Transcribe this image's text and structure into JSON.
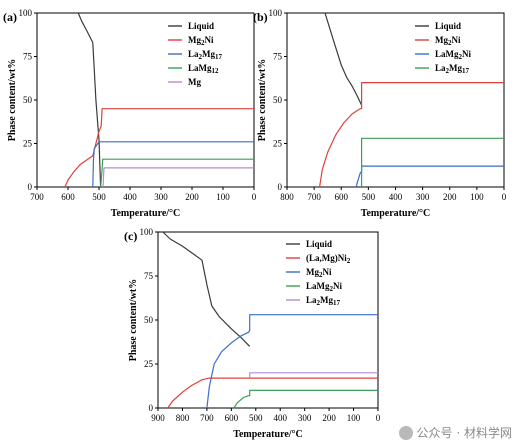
{
  "chart_data": [
    {
      "type": "line",
      "panel_label": "(a)",
      "xlabel": "Temperature/°C",
      "ylabel": "Phase content/wt%",
      "xlim": [
        700,
        0
      ],
      "ylim": [
        0,
        100
      ],
      "x_ticks": [
        700,
        600,
        500,
        400,
        300,
        200,
        100,
        0
      ],
      "y_ticks": [
        0,
        25,
        50,
        75,
        100
      ],
      "legend_position": "top-right",
      "series": [
        {
          "name": "Liquid",
          "sub": "",
          "color": "#3a3a3a",
          "points": [
            [
              567,
              100
            ],
            [
              555,
              95
            ],
            [
              540,
              90
            ],
            [
              520,
              83
            ],
            [
              510,
              50
            ],
            [
              500,
              27
            ],
            [
              495,
              0
            ]
          ]
        },
        {
          "name": "Mg",
          "sub": "2",
          "name_after": "Ni",
          "color": "#e0403a",
          "points": [
            [
              610,
              0
            ],
            [
              600,
              4
            ],
            [
              580,
              9
            ],
            [
              560,
              13
            ],
            [
              520,
              18
            ],
            [
              510,
              25
            ],
            [
              500,
              32
            ],
            [
              493,
              35
            ],
            [
              490,
              45
            ],
            [
              0,
              45
            ]
          ]
        },
        {
          "name": "La",
          "sub": "2",
          "name_after": "Mg",
          "sub2": "17",
          "color": "#3a6fc7",
          "points": [
            [
              520,
              0
            ],
            [
              518,
              15
            ],
            [
              515,
              22
            ],
            [
              500,
              26
            ],
            [
              0,
              26
            ]
          ]
        },
        {
          "name": "LaMg",
          "sub": "12",
          "color": "#3d9e57",
          "points": [
            [
              495,
              0
            ],
            [
              493,
              4
            ],
            [
              490,
              10
            ],
            [
              488,
              16
            ],
            [
              0,
              16
            ]
          ]
        },
        {
          "name": "Mg",
          "sub": "",
          "color": "#b58bd3",
          "points": [
            [
              487,
              0
            ],
            [
              485,
              8
            ],
            [
              484,
              11
            ],
            [
              0,
              11
            ]
          ]
        }
      ]
    },
    {
      "type": "line",
      "panel_label": "(b)",
      "xlabel": "Temperature/°C",
      "ylabel": "Phase content/wt%",
      "xlim": [
        800,
        0
      ],
      "ylim": [
        0,
        100
      ],
      "x_ticks": [
        800,
        700,
        600,
        500,
        400,
        300,
        200,
        100,
        0
      ],
      "y_ticks": [
        0,
        25,
        50,
        75,
        100
      ],
      "legend_position": "top-right",
      "series": [
        {
          "name": "Liquid",
          "sub": "",
          "color": "#3a3a3a",
          "points": [
            [
              660,
              100
            ],
            [
              640,
              90
            ],
            [
              620,
              80
            ],
            [
              600,
              70
            ],
            [
              580,
              63
            ],
            [
              560,
              58
            ],
            [
              540,
              52
            ],
            [
              525,
              47
            ]
          ]
        },
        {
          "name": "Mg",
          "sub": "2",
          "name_after": "Ni",
          "color": "#e0403a",
          "points": [
            [
              680,
              0
            ],
            [
              670,
              10
            ],
            [
              650,
              20
            ],
            [
              620,
              30
            ],
            [
              590,
              37
            ],
            [
              560,
              42
            ],
            [
              530,
              45
            ],
            [
              525,
              45
            ],
            [
              525,
              60
            ],
            [
              0,
              60
            ]
          ]
        },
        {
          "name": "LaMg",
          "sub": "2",
          "name_after": "Ni",
          "color": "#3a6fc7",
          "points": [
            [
              545,
              0
            ],
            [
              540,
              3
            ],
            [
              530,
              8
            ],
            [
              525,
              9
            ],
            [
              525,
              12
            ],
            [
              0,
              12
            ]
          ]
        },
        {
          "name": "La",
          "sub": "2",
          "name_after": "Mg",
          "sub2": "17",
          "color": "#3d9e57",
          "points": [
            [
              525,
              0
            ],
            [
              525,
              28
            ],
            [
              0,
              28
            ]
          ]
        }
      ]
    },
    {
      "type": "line",
      "panel_label": "(c)",
      "xlabel": "Temperature/°C",
      "ylabel": "Phase content/wt%",
      "xlim": [
        900,
        0
      ],
      "ylim": [
        0,
        100
      ],
      "x_ticks": [
        900,
        800,
        700,
        600,
        500,
        400,
        300,
        200,
        100,
        0
      ],
      "y_ticks": [
        0,
        25,
        50,
        75,
        100
      ],
      "legend_position": "top-right",
      "series": [
        {
          "name": "Liquid",
          "sub": "",
          "color": "#3a3a3a",
          "points": [
            [
              880,
              100
            ],
            [
              850,
              96
            ],
            [
              800,
              92
            ],
            [
              760,
              88
            ],
            [
              720,
              84
            ],
            [
              700,
              70
            ],
            [
              680,
              58
            ],
            [
              650,
              52
            ],
            [
              600,
              45
            ],
            [
              560,
              40
            ],
            [
              525,
              35
            ]
          ]
        },
        {
          "name": "(La,Mg)Ni",
          "sub": "2",
          "color": "#e0403a",
          "points": [
            [
              860,
              0
            ],
            [
              840,
              4
            ],
            [
              800,
              9
            ],
            [
              760,
              13
            ],
            [
              720,
              16
            ],
            [
              690,
              17
            ],
            [
              0,
              17
            ]
          ]
        },
        {
          "name": "Mg",
          "sub": "2",
          "name_after": "Ni",
          "color": "#3a6fc7",
          "points": [
            [
              700,
              0
            ],
            [
              690,
              12
            ],
            [
              670,
              25
            ],
            [
              640,
              32
            ],
            [
              600,
              37
            ],
            [
              560,
              41
            ],
            [
              530,
              43
            ],
            [
              525,
              44
            ],
            [
              525,
              53
            ],
            [
              0,
              53
            ]
          ]
        },
        {
          "name": "LaMg",
          "sub": "2",
          "name_after": "Ni",
          "color": "#3d9e57",
          "points": [
            [
              590,
              0
            ],
            [
              575,
              3
            ],
            [
              550,
              6
            ],
            [
              530,
              7
            ],
            [
              525,
              7
            ],
            [
              525,
              10
            ],
            [
              0,
              10
            ]
          ]
        },
        {
          "name": "La",
          "sub": "2",
          "name_after": "Mg",
          "sub2": "17",
          "color": "#b58bd3",
          "points": [
            [
              525,
              17
            ],
            [
              525,
              20
            ],
            [
              0,
              20
            ]
          ]
        }
      ]
    }
  ],
  "watermark": {
    "text": "公众号 · 材料学网"
  }
}
